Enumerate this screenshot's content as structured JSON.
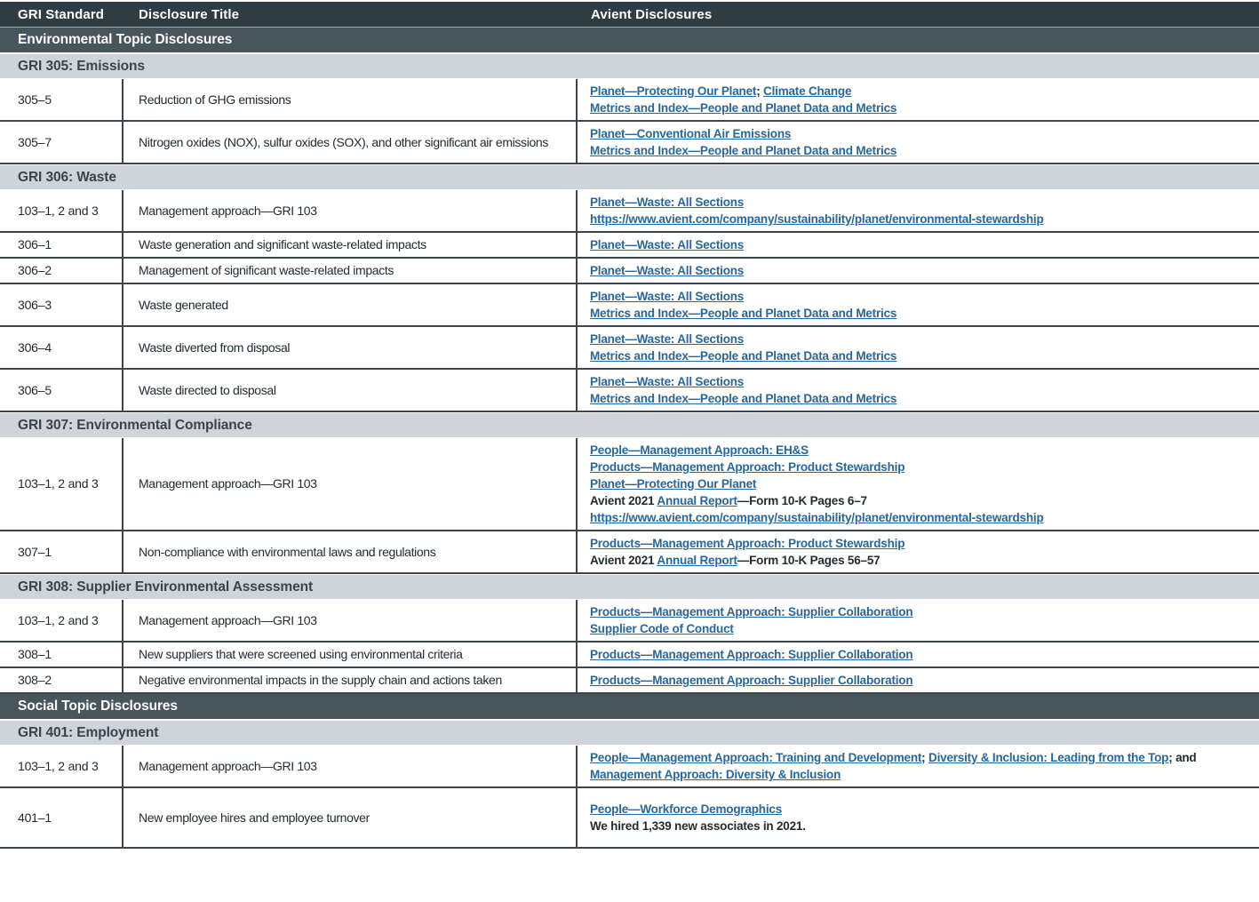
{
  "header": {
    "columns": [
      {
        "label": "GRI Standard"
      },
      {
        "label": "Disclosure Title"
      },
      {
        "label": "Avient Disclosures"
      }
    ]
  },
  "colors": {
    "header_bg": "#303c43",
    "topic_band_bg": "#48555c",
    "subsection_band_bg": "#ced4da",
    "border": "#3a454c",
    "link": "#26679d",
    "body_text": "#232c31"
  },
  "sections": [
    {
      "kind": "topic",
      "label": "Environmental Topic Disclosures"
    },
    {
      "kind": "group",
      "label": "GRI 305: Emissions",
      "rows": [
        {
          "standard": "305–5",
          "title": "Reduction of GHG emissions",
          "lines": [
            [
              {
                "link": "Planet—Protecting Our Planet"
              },
              {
                "text": ";  "
              },
              {
                "link": "Climate Change"
              }
            ],
            [
              {
                "link": "Metrics and Index—People and Planet Data and Metrics"
              }
            ]
          ]
        },
        {
          "standard": "305–7",
          "title": "Nitrogen oxides (NOX), sulfur oxides (SOX), and other significant air emissions",
          "lines": [
            [
              {
                "link": "Planet—Conventional Air Emissions"
              }
            ],
            [
              {
                "link": "Metrics and Index—People and Planet Data and Metrics"
              }
            ]
          ]
        }
      ]
    },
    {
      "kind": "group",
      "label": "GRI 306: Waste",
      "rows": [
        {
          "standard": "103–1, 2 and 3",
          "title": "Management approach—GRI 103",
          "lines": [
            [
              {
                "link": "Planet—Waste: All Sections"
              }
            ],
            [
              {
                "link": "https://www.avient.com/company/sustainability/planet/environmental-stewardship"
              }
            ]
          ]
        },
        {
          "standard": "306–1",
          "title": "Waste generation and significant waste-related impacts",
          "lines": [
            [
              {
                "link": "Planet—Waste: All Sections"
              }
            ]
          ]
        },
        {
          "standard": "306–2",
          "title": "Management of significant waste-related impacts",
          "lines": [
            [
              {
                "link": "Planet—Waste: All Sections"
              }
            ]
          ]
        },
        {
          "standard": "306–3",
          "title": "Waste generated",
          "lines": [
            [
              {
                "link": "Planet—Waste: All Sections"
              }
            ],
            [
              {
                "link": "Metrics and Index—People and Planet Data and Metrics"
              }
            ]
          ]
        },
        {
          "standard": "306–4",
          "title": "Waste diverted from disposal",
          "lines": [
            [
              {
                "link": "Planet—Waste: All Sections"
              }
            ],
            [
              {
                "link": "Metrics and Index—People and Planet Data and Metrics"
              }
            ]
          ]
        },
        {
          "standard": "306–5",
          "title": "Waste directed to disposal",
          "lines": [
            [
              {
                "link": "Planet—Waste: All Sections"
              }
            ],
            [
              {
                "link": "Metrics and Index—People and Planet Data and Metrics"
              }
            ]
          ]
        }
      ]
    },
    {
      "kind": "group",
      "label": "GRI 307: Environmental Compliance",
      "rows": [
        {
          "standard": "103–1, 2 and 3",
          "title": "Management approach—GRI 103",
          "lines": [
            [
              {
                "link": "People—Management Approach: EH&S"
              }
            ],
            [
              {
                "link": "Products—Management Approach: Product Stewardship"
              }
            ],
            [
              {
                "link": "Planet—Protecting Our Planet"
              }
            ],
            [
              {
                "text": "Avient 2021 "
              },
              {
                "link": "Annual Report"
              },
              {
                "text": "—Form 10-K Pages 6–7"
              }
            ],
            [
              {
                "link": "https://www.avient.com/company/sustainability/planet/environmental-stewardship"
              }
            ]
          ]
        },
        {
          "standard": "307–1",
          "title": "Non-compliance with environmental laws and regulations",
          "lines": [
            [
              {
                "link": "Products—Management Approach: Product Stewardship"
              }
            ],
            [
              {
                "text": "Avient 2021 "
              },
              {
                "link": "Annual Report"
              },
              {
                "text": "—Form 10-K Pages 56–57"
              }
            ]
          ]
        }
      ]
    },
    {
      "kind": "group",
      "label": "GRI 308: Supplier Environmental Assessment",
      "rows": [
        {
          "standard": "103–1, 2 and 3",
          "title": "Management approach—GRI 103",
          "lines": [
            [
              {
                "link": "Products—Management Approach: Supplier Collaboration"
              }
            ],
            [
              {
                "link": "Supplier Code of Conduct"
              }
            ]
          ]
        },
        {
          "standard": "308–1",
          "title": "New suppliers that were screened using environmental criteria",
          "lines": [
            [
              {
                "link": "Products—Management Approach: Supplier Collaboration"
              }
            ]
          ]
        },
        {
          "standard": "308–2",
          "title": "Negative environmental impacts in the supply chain and actions taken",
          "lines": [
            [
              {
                "link": "Products—Management Approach: Supplier Collaboration"
              }
            ]
          ]
        }
      ]
    },
    {
      "kind": "topic",
      "label": "Social Topic Disclosures"
    },
    {
      "kind": "group",
      "label": "GRI 401: Employment",
      "rows": [
        {
          "standard": "103–1, 2 and 3",
          "title": "Management approach—GRI 103",
          "lines": [
            [
              {
                "link": "People—Management Approach: Training and Development"
              },
              {
                "text": "; "
              },
              {
                "link": "Diversity & Inclusion: Leading from the Top"
              },
              {
                "text": "; and"
              }
            ],
            [
              {
                "link": "Management Approach: Diversity & Inclusion"
              }
            ]
          ]
        },
        {
          "standard": "401–1",
          "title": "New employee hires and employee turnover",
          "lines": [
            [
              {
                "link": "People—Workforce Demographics"
              }
            ],
            [
              {
                "text": "We hired 1,339 new associates in 2021."
              }
            ]
          ]
        }
      ]
    }
  ]
}
